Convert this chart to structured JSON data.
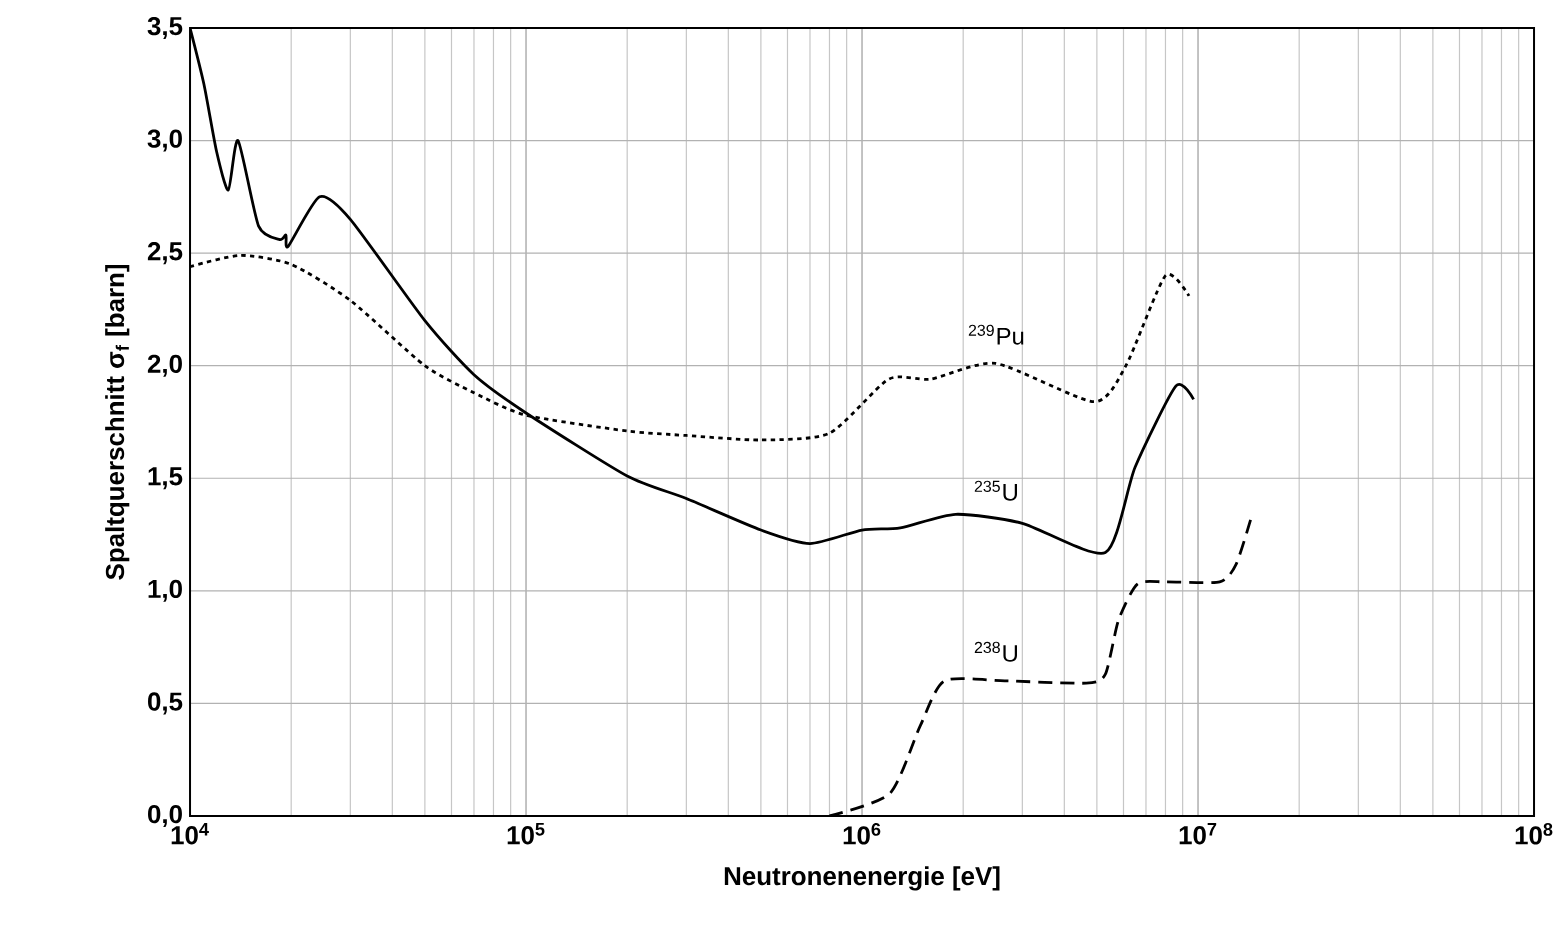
{
  "chart_data": {
    "type": "line",
    "xlabel": "Neutronenenergie [eV]",
    "ylabel": "Spaltquerschnitt σ$_{f}$ [barn]",
    "log": "x",
    "grid": true,
    "xlim": [
      10000,
      100000000
    ],
    "xticks": [
      {
        "value": 10000,
        "label": "10$^{4}$"
      },
      {
        "value": 100000,
        "label": "10$^{5}$"
      },
      {
        "value": 1000000,
        "label": "10$^{6}$"
      },
      {
        "value": 10000000,
        "label": "10$^{7}$"
      },
      {
        "value": 100000000,
        "label": "10$^{8}$"
      }
    ],
    "ylim": [
      0,
      3.5
    ],
    "yticks": [
      {
        "value": 0,
        "label": "0,0"
      },
      {
        "value": 0.5,
        "label": "0,5"
      },
      {
        "value": 1,
        "label": "1,0"
      },
      {
        "value": 1.5,
        "label": "1,5"
      },
      {
        "value": 2,
        "label": "2,0"
      },
      {
        "value": 2.5,
        "label": "2,5"
      },
      {
        "value": 3,
        "label": "3,0"
      },
      {
        "value": 3.5,
        "label": "3,5"
      }
    ],
    "series": [
      {
        "name": "$^{235}$U",
        "color": "#000000",
        "line_style": "solid",
        "x": [
          10000,
          11000,
          12000,
          13000,
          13900,
          16000,
          18500,
          19300,
          19600,
          24300,
          30000,
          50000,
          70000,
          100000,
          200000,
          300000,
          500000,
          700000,
          1000000,
          1300000,
          1900000,
          3000000,
          5300000,
          6500000,
          8600000,
          9700000
        ],
        "values": [
          3.5,
          3.25,
          2.95,
          2.78,
          3.0,
          2.62,
          2.56,
          2.58,
          2.53,
          2.75,
          2.65,
          2.2,
          1.96,
          1.79,
          1.51,
          1.41,
          1.27,
          1.21,
          1.27,
          1.28,
          1.34,
          1.3,
          1.17,
          1.55,
          1.91,
          1.85
        ]
      },
      {
        "name": "$^{239}$Pu",
        "color": "#000000",
        "line_style": "dotted",
        "x": [
          10000,
          14100,
          20000,
          30000,
          50000,
          70000,
          100000,
          200000,
          300000,
          500000,
          800000,
          1200000,
          1600000,
          2500000,
          4900000,
          6100000,
          8000000,
          9400000
        ],
        "values": [
          2.44,
          2.49,
          2.45,
          2.29,
          2.0,
          1.88,
          1.78,
          1.71,
          1.69,
          1.67,
          1.7,
          1.94,
          1.94,
          2.01,
          1.84,
          2.0,
          2.4,
          2.31
        ]
      },
      {
        "name": "$^{238}$U",
        "color": "#000000",
        "line_style": "dashed",
        "x": [
          800000,
          1210000,
          1490000,
          1760000,
          2660000,
          4650000,
          5300000,
          5800000,
          6600000,
          8000000,
          11600000,
          13000000,
          14500000
        ],
        "values": [
          0,
          0.1,
          0.4,
          0.6,
          0.6,
          0.59,
          0.63,
          0.87,
          1.03,
          1.04,
          1.04,
          1.12,
          1.34
        ]
      }
    ]
  }
}
